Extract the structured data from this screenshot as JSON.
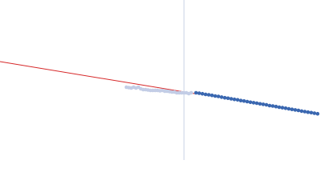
{
  "chart_data": {
    "type": "scatter",
    "xlim": [
      0,
      400
    ],
    "ylim": [
      0,
      200
    ],
    "series": [
      {
        "color": "#c3cde6",
        "x": [
          158,
          161,
          164,
          167,
          170,
          173,
          176,
          179,
          182,
          185,
          188,
          191,
          194,
          197,
          200,
          203,
          206,
          209,
          212,
          215,
          218,
          221,
          224,
          227,
          230,
          233,
          236,
          239
        ],
        "values": [
          91,
          90.5,
          90,
          91,
          90,
          91,
          89,
          88,
          88,
          87.5,
          87,
          87,
          87,
          87,
          86.5,
          87,
          86,
          86,
          85.5,
          85,
          85,
          84,
          84,
          84,
          84,
          84,
          83,
          84
        ]
      },
      {
        "color": "#3a67b0",
        "x": [
          245,
          249,
          253,
          257,
          261,
          265,
          269,
          273,
          277,
          281,
          285,
          289,
          293,
          297,
          301,
          305,
          309,
          313,
          317,
          321,
          325,
          329,
          333,
          337,
          341,
          345,
          349,
          353,
          357,
          361,
          365,
          369,
          373,
          377,
          381,
          385,
          389,
          393,
          397
        ],
        "values": [
          84,
          83.5,
          82.8,
          82,
          81.5,
          80.8,
          80,
          79.5,
          78.6,
          77.8,
          77.2,
          76.5,
          75.8,
          75.2,
          74.3,
          73.7,
          73,
          72.2,
          71.6,
          71,
          70.2,
          69.6,
          69,
          68,
          67.5,
          66.8,
          66,
          65.4,
          64.7,
          64,
          63.3,
          62.6,
          62,
          61.1,
          60.5,
          59.8,
          59.2,
          58.5,
          57.8
        ]
      }
    ],
    "fit_line": {
      "color": "#d62728",
      "x": [
        0,
        243
      ],
      "values": [
        123,
        83
      ]
    },
    "marker_x": 230,
    "marker_color": "#c8d0e4"
  }
}
